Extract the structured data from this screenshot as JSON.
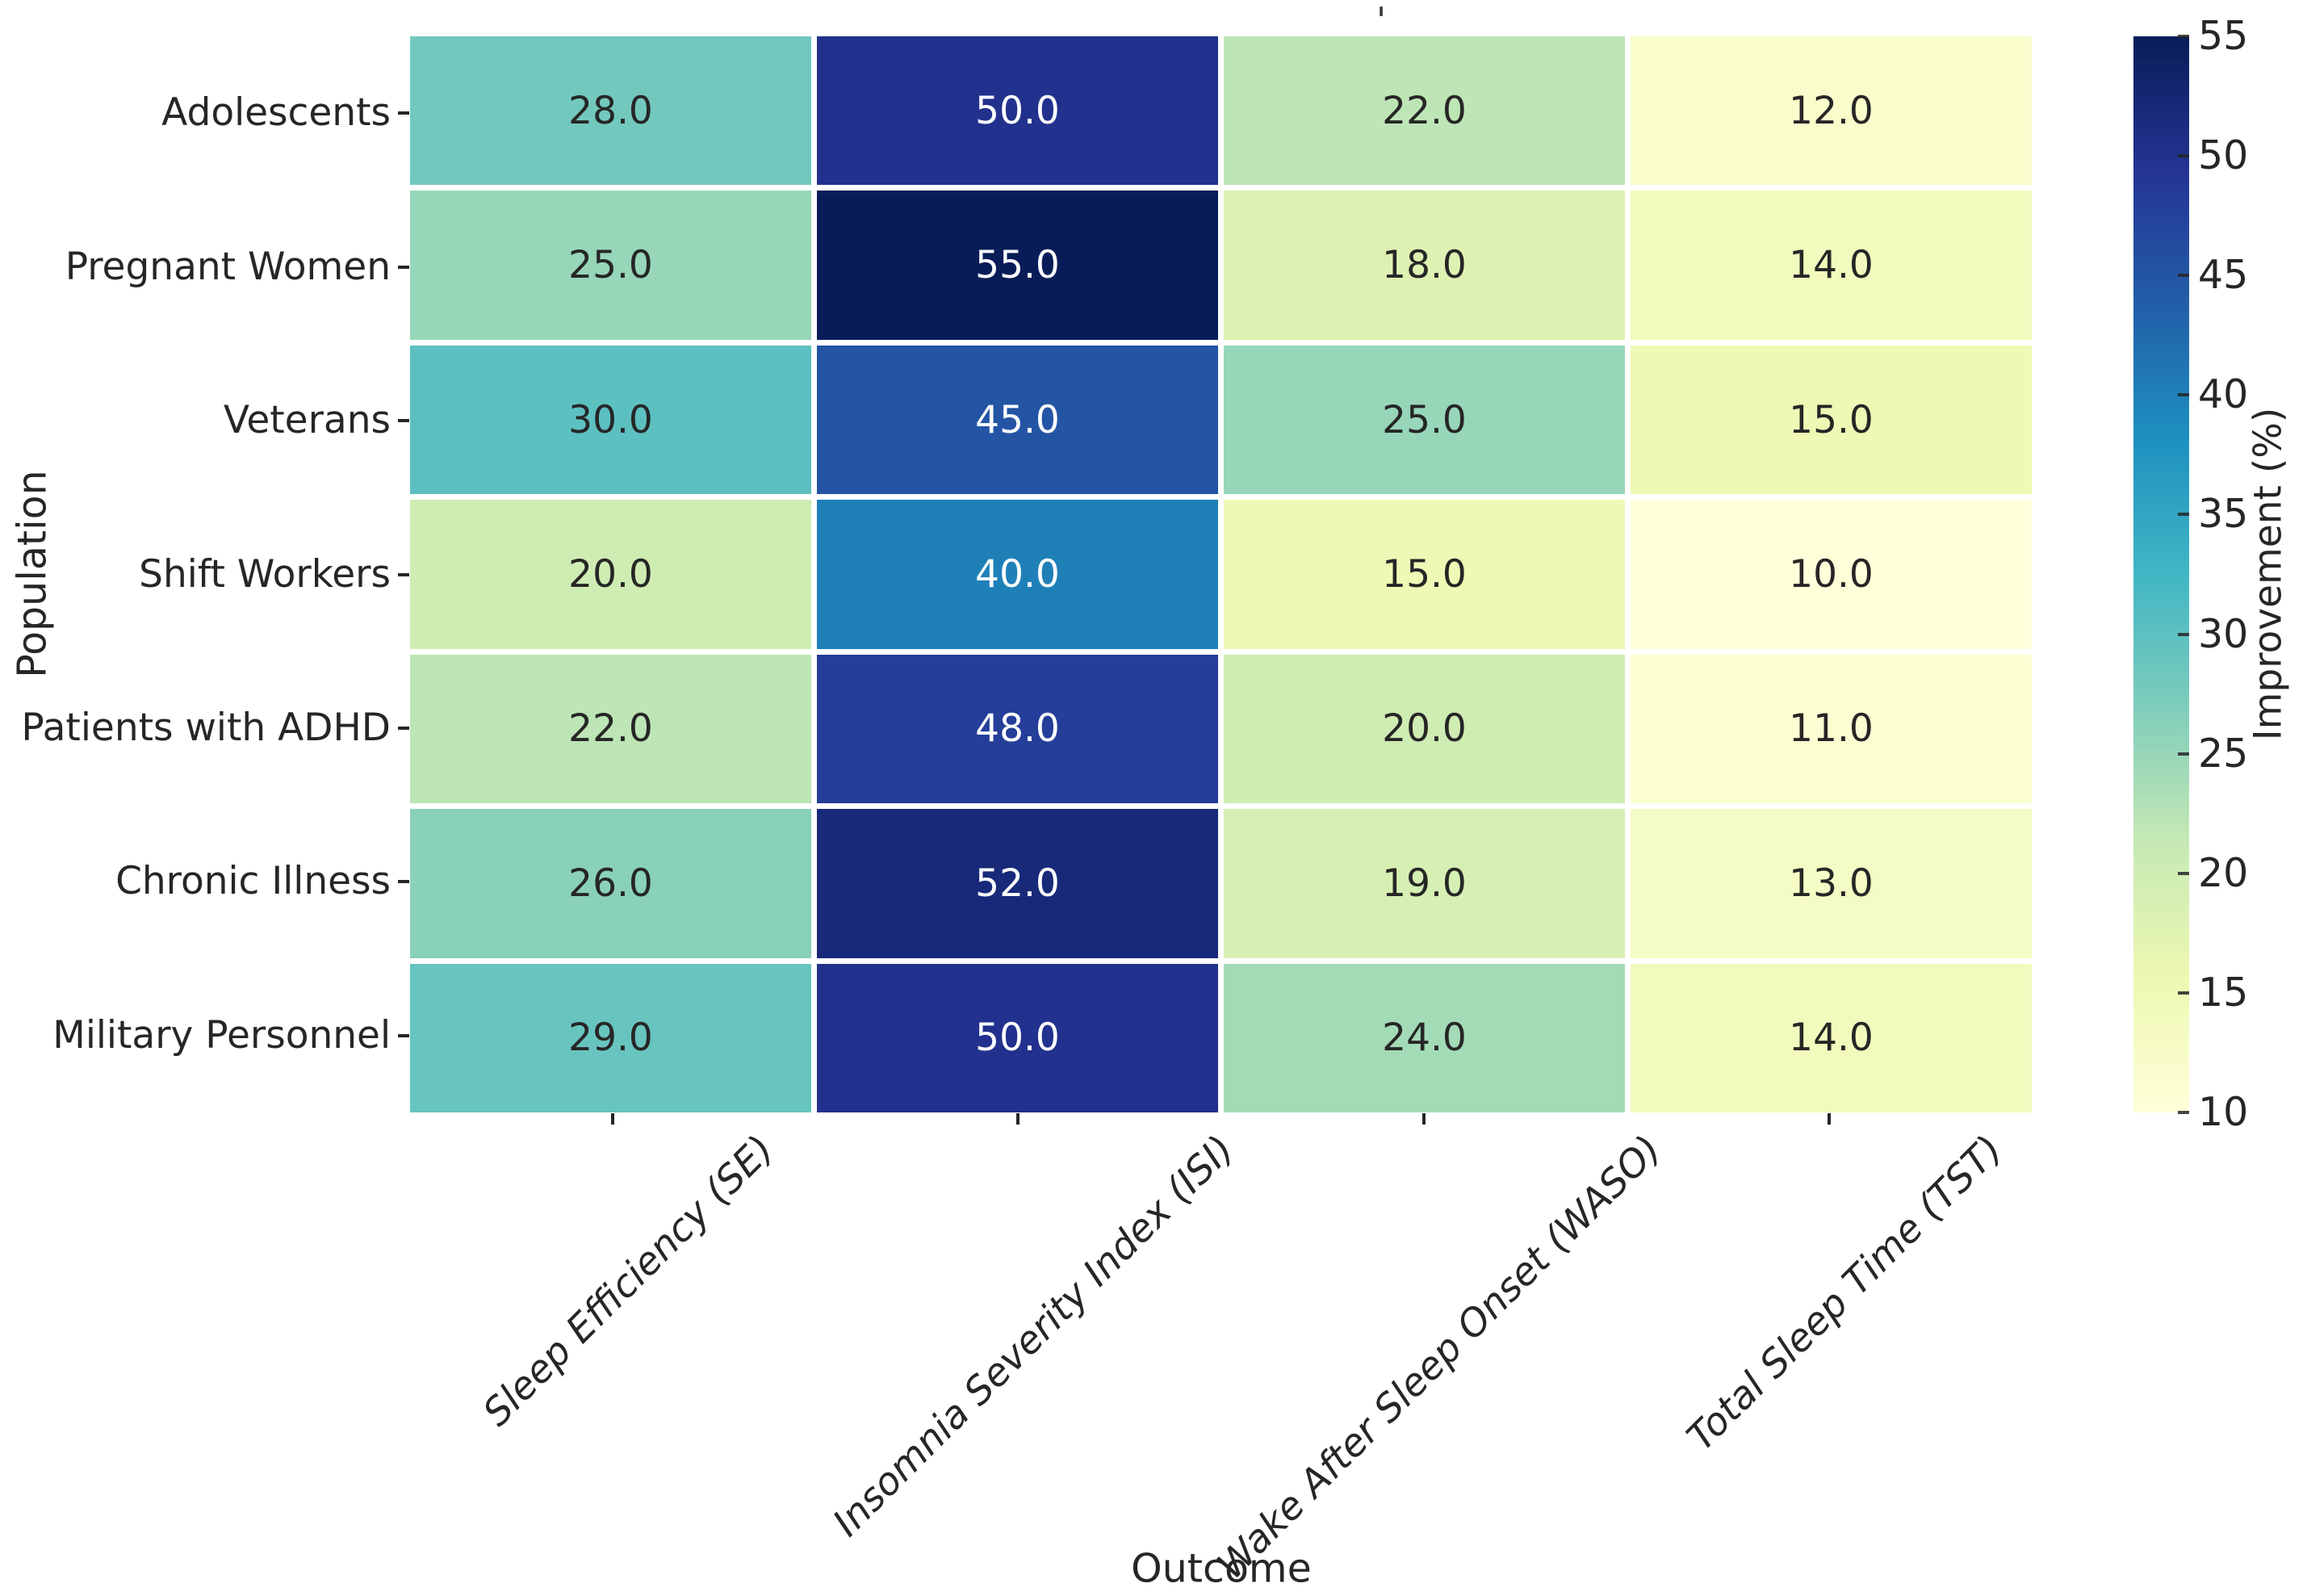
{
  "figure": {
    "title_mark": "'",
    "background": "#ffffff"
  },
  "chart_data": {
    "type": "heatmap",
    "xlabel": "Outcome",
    "ylabel": "Population",
    "x_categories": [
      "Sleep Efficiency (SE)",
      "Insomnia Severity Index (ISI)",
      "Wake After Sleep Onset (WASO)",
      "Total Sleep Time (TST)"
    ],
    "y_categories": [
      "Adolescents",
      "Pregnant Women",
      "Veterans",
      "Shift Workers",
      "Patients with ADHD",
      "Chronic Illness",
      "Military Personnel"
    ],
    "values": [
      [
        28.0,
        50.0,
        22.0,
        12.0
      ],
      [
        25.0,
        55.0,
        18.0,
        14.0
      ],
      [
        30.0,
        45.0,
        25.0,
        15.0
      ],
      [
        20.0,
        40.0,
        15.0,
        10.0
      ],
      [
        22.0,
        48.0,
        20.0,
        11.0
      ],
      [
        26.0,
        52.0,
        19.0,
        13.0
      ],
      [
        29.0,
        50.0,
        24.0,
        14.0
      ]
    ],
    "annotation_decimals": 1,
    "vmin": 10,
    "vmax": 55,
    "colorbar": {
      "label": "Improvement (%)",
      "ticks": [
        10,
        15,
        20,
        25,
        30,
        35,
        40,
        45,
        50,
        55
      ],
      "position": "right"
    },
    "colormap": {
      "name": "YlGnBu",
      "stops": [
        "#ffffd9",
        "#edf8b1",
        "#c7e9b4",
        "#7fcdbb",
        "#41b6c4",
        "#1d91c0",
        "#225ea8",
        "#253494",
        "#081d58"
      ]
    },
    "text_colors": {
      "on_light": "#262626",
      "on_dark": "#ffffff"
    },
    "tick_color": "#262626",
    "grid_line_color": "#ffffff",
    "grid": false
  }
}
